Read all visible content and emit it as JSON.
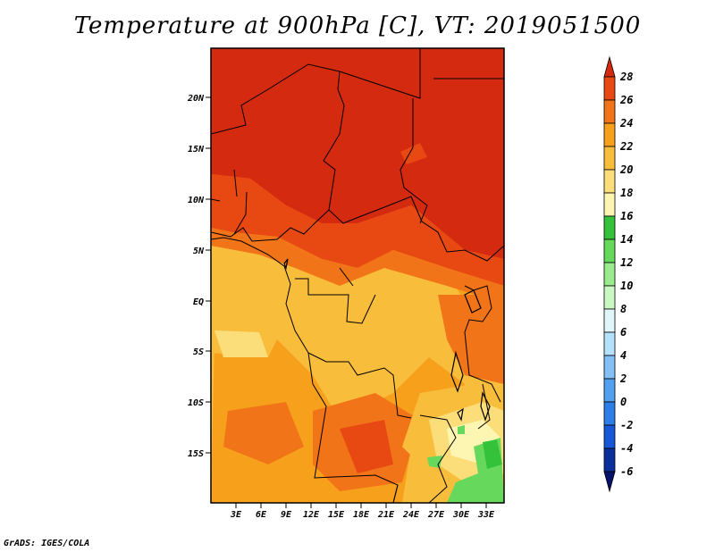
{
  "title": "Temperature at 900hPa [C], VT: 2019051500",
  "credit": "GrADS: IGES/COLA",
  "map": {
    "lat_labels": [
      "20N",
      "15N",
      "10N",
      "5N",
      "EQ",
      "5S",
      "10S",
      "15S"
    ],
    "lon_labels": [
      "3E",
      "6E",
      "9E",
      "12E",
      "15E",
      "18E",
      "21E",
      "24E",
      "27E",
      "30E",
      "33E"
    ]
  },
  "colorbar": {
    "labels": [
      "28",
      "26",
      "24",
      "22",
      "20",
      "18",
      "16",
      "14",
      "12",
      "10",
      "8",
      "6",
      "4",
      "2",
      "0",
      "-2",
      "-4",
      "-6"
    ],
    "colors": [
      "#d42a10",
      "#e84912",
      "#f27418",
      "#f7a01c",
      "#f9bd3c",
      "#fbde7a",
      "#fdf6b3",
      "#33c23a",
      "#66d85c",
      "#9aeb8e",
      "#c9f8c3",
      "#dff7f9",
      "#b6e1fa",
      "#82c0f5",
      "#539ff0",
      "#2f7de6",
      "#1557d6",
      "#0a2f9b",
      "#06126a"
    ]
  }
}
